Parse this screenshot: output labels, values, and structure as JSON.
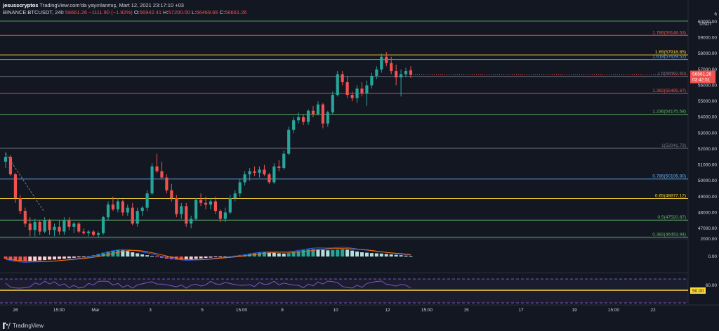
{
  "header": {
    "user": "jesusscryptos",
    "published": "TradingView.com'da yayınlanmış, Mart 12, 2021 23:17:10 +03",
    "symbol": "BINANCE:BTCUSDT, 240",
    "price": "56661.26",
    "change": "−1111.90 (−1.92%)",
    "o_label": "O:",
    "o": "56942.41",
    "h_label": "H:",
    "h": "57200.00",
    "l_label": "L:",
    "l": "56469.65",
    "c_label": "C:",
    "c": "56661.26"
  },
  "branding": "TradingView",
  "axis": {
    "currency": "USDT",
    "price_ticks": [
      60000,
      59000,
      58000,
      57000,
      56000,
      55000,
      54000,
      53000,
      52000,
      51000,
      50000,
      49000,
      48000,
      47000
    ],
    "price_tick_labels": [
      "60000.00",
      "59000.00",
      "58000.00",
      "57000.00",
      "56000.00",
      "55000.00",
      "54000.00",
      "53000.00",
      "52000.00",
      "51000.00",
      "50000.00",
      "49000.00",
      "48000.00",
      "47000.00"
    ],
    "top_tick": "6",
    "macd_ticks": [
      "2000.00",
      "0.00"
    ],
    "rsi_ticks": [
      "60.00",
      "50.00"
    ],
    "time_labels": [
      "26",
      "15:00",
      "Mar",
      "3",
      "5",
      "15:00",
      "8",
      "10",
      "12",
      "15:00",
      "15",
      "17",
      "19",
      "15:00",
      "22"
    ],
    "last_price_label": "56661.26",
    "countdown": "03:42:51"
  },
  "fib_levels": [
    {
      "text": "1.786(59148.53)",
      "price": 59148.53,
      "color": "#ef5350"
    },
    {
      "text": "1.65(57918.85)",
      "price": 57918.85,
      "color": "#fdd835"
    },
    {
      "text": "1.618(57629.52)",
      "price": 57629.52,
      "color": "#64b5f6"
    },
    {
      "text": "1.5(56562.60)",
      "price": 56562.6,
      "color": "#787b86"
    },
    {
      "text": "1.382(55495.67)",
      "price": 55495.67,
      "color": "#ef5350"
    },
    {
      "text": "1.236(54175.58)",
      "price": 54175.58,
      "color": "#66bb6a"
    },
    {
      "text": "1(52041.73)",
      "price": 52041.73,
      "color": "#787b86"
    },
    {
      "text": "0.786(50106.80)",
      "price": 50106.8,
      "color": "#64b5f6"
    },
    {
      "text": "0.65(48877.12)",
      "price": 48877.12,
      "color": "#fdd835"
    },
    {
      "text": "0.5(47520.87)",
      "price": 47520.87,
      "color": "#66bb6a"
    },
    {
      "text": "0.382(46453.94)",
      "price": 46453.94,
      "color": "#66bb6a"
    }
  ],
  "colors": {
    "up": "#26a69a",
    "down": "#ef5350",
    "rsi": "#7e57c2",
    "macd": "#2962ff",
    "signal": "#ff6d00",
    "last_price": "#ef5350"
  },
  "chart_data": {
    "type": "candlestick",
    "ohlc": [
      [
        51200,
        51800,
        50800,
        51500
      ],
      [
        51500,
        51600,
        50300,
        50400
      ],
      [
        50400,
        50500,
        48600,
        48900
      ],
      [
        48900,
        49100,
        47900,
        48100
      ],
      [
        48100,
        48300,
        47100,
        47300
      ],
      [
        47300,
        47700,
        46500,
        46900
      ],
      [
        46900,
        47600,
        46500,
        47400
      ],
      [
        47400,
        47500,
        46600,
        46800
      ],
      [
        46800,
        47700,
        46700,
        47500
      ],
      [
        47500,
        47600,
        46600,
        46900
      ],
      [
        46900,
        47300,
        46500,
        47100
      ],
      [
        47100,
        47500,
        46600,
        46800
      ],
      [
        46800,
        47700,
        46600,
        47500
      ],
      [
        47500,
        47700,
        46900,
        47100
      ],
      [
        47100,
        47400,
        46700,
        47300
      ],
      [
        47300,
        47400,
        46700,
        46800
      ],
      [
        46800,
        47000,
        46600,
        46700
      ],
      [
        46700,
        46900,
        46500,
        46800
      ],
      [
        46800,
        46900,
        46500,
        46600
      ],
      [
        46600,
        46800,
        46400,
        46700
      ],
      [
        46700,
        47800,
        46600,
        47700
      ],
      [
        47700,
        48700,
        47500,
        48500
      ],
      [
        48500,
        49000,
        48100,
        48200
      ],
      [
        48200,
        48900,
        48000,
        48700
      ],
      [
        48700,
        48800,
        47800,
        48000
      ],
      [
        48000,
        48500,
        47800,
        48300
      ],
      [
        48300,
        48600,
        47200,
        47300
      ],
      [
        47300,
        48300,
        47100,
        48100
      ],
      [
        48100,
        48400,
        47800,
        48300
      ],
      [
        48300,
        49400,
        48100,
        49200
      ],
      [
        49200,
        51100,
        49100,
        50900
      ],
      [
        50900,
        51700,
        50500,
        50600
      ],
      [
        50600,
        51200,
        50100,
        50200
      ],
      [
        50200,
        50400,
        49200,
        49400
      ],
      [
        49400,
        49800,
        48700,
        48900
      ],
      [
        48900,
        49100,
        47700,
        47900
      ],
      [
        47900,
        48600,
        47600,
        48400
      ],
      [
        48400,
        48600,
        47100,
        47300
      ],
      [
        47300,
        47800,
        47000,
        47600
      ],
      [
        47600,
        48900,
        47500,
        48800
      ],
      [
        48800,
        49200,
        48400,
        48600
      ],
      [
        48600,
        49000,
        48200,
        48500
      ],
      [
        48500,
        48900,
        48200,
        48700
      ],
      [
        48700,
        49000,
        47900,
        48100
      ],
      [
        48100,
        48200,
        47400,
        47600
      ],
      [
        47600,
        48300,
        47400,
        48000
      ],
      [
        48000,
        49100,
        47900,
        48900
      ],
      [
        48900,
        49400,
        48700,
        49200
      ],
      [
        49200,
        50100,
        49000,
        49900
      ],
      [
        49900,
        50600,
        49700,
        50400
      ],
      [
        50400,
        50800,
        50000,
        50600
      ],
      [
        50600,
        50900,
        50300,
        50500
      ],
      [
        50500,
        50900,
        50200,
        50700
      ],
      [
        50700,
        51000,
        50300,
        50400
      ],
      [
        50400,
        50500,
        49800,
        49900
      ],
      [
        49900,
        51100,
        49800,
        50900
      ],
      [
        50900,
        51300,
        50600,
        50800
      ],
      [
        50800,
        51900,
        50700,
        51700
      ],
      [
        51700,
        53400,
        51600,
        53200
      ],
      [
        53200,
        54000,
        53000,
        53800
      ],
      [
        53800,
        54300,
        53600,
        54000
      ],
      [
        54000,
        54200,
        53500,
        53700
      ],
      [
        53700,
        54500,
        53500,
        54400
      ],
      [
        54400,
        54700,
        54000,
        54200
      ],
      [
        54200,
        55000,
        54100,
        54800
      ],
      [
        54800,
        54900,
        53300,
        53600
      ],
      [
        53600,
        54400,
        53400,
        54300
      ],
      [
        54300,
        55600,
        54200,
        55400
      ],
      [
        55400,
        56900,
        55300,
        56700
      ],
      [
        56700,
        56900,
        56000,
        56200
      ],
      [
        56200,
        56600,
        55200,
        55400
      ],
      [
        55400,
        55600,
        55000,
        55200
      ],
      [
        55200,
        56000,
        54900,
        55800
      ],
      [
        55800,
        56200,
        55300,
        55500
      ],
      [
        55500,
        56300,
        54700,
        56000
      ],
      [
        56000,
        56800,
        55800,
        56600
      ],
      [
        56600,
        57200,
        56400,
        57000
      ],
      [
        57000,
        58000,
        56800,
        57800
      ],
      [
        57800,
        58100,
        57200,
        57400
      ],
      [
        57400,
        57800,
        56700,
        56900
      ],
      [
        56900,
        57300,
        56000,
        56500
      ],
      [
        56500,
        57000,
        55300,
        56700
      ],
      [
        56700,
        57100,
        56500,
        56900
      ],
      [
        56942.41,
        57200,
        56469.65,
        56661.26
      ]
    ],
    "macd_hist": [
      -100,
      -150,
      -200,
      -220,
      -230,
      -210,
      -200,
      -180,
      -170,
      -150,
      -140,
      -120,
      -100,
      -80,
      -60,
      -40,
      -20,
      20,
      60,
      120,
      180,
      240,
      280,
      300,
      290,
      250,
      200,
      150,
      100,
      60,
      30,
      -20,
      -60,
      -100,
      -130,
      -150,
      -160,
      -150,
      -130,
      -110,
      -90,
      -70,
      -50,
      -30,
      -20,
      -10,
      10,
      40,
      70,
      100,
      140,
      170,
      190,
      200,
      190,
      170,
      150,
      140,
      160,
      200,
      250,
      300,
      330,
      350,
      340,
      310,
      290,
      300,
      320,
      340,
      320,
      280,
      240,
      200,
      180,
      160,
      150,
      140,
      120,
      100,
      80,
      60,
      40,
      20
    ]
  }
}
